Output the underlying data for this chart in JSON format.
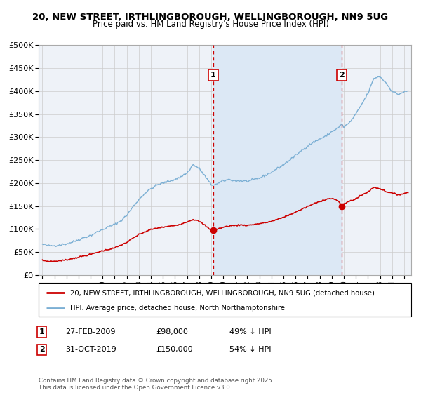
{
  "title_line1": "20, NEW STREET, IRTHLINGBOROUGH, WELLINGBOROUGH, NN9 5UG",
  "title_line2": "Price paid vs. HM Land Registry's House Price Index (HPI)",
  "background_color": "#ffffff",
  "plot_bg_color": "#eef2f8",
  "grid_color": "#cccccc",
  "hpi_color": "#7bafd4",
  "price_color": "#cc0000",
  "shade_color": "#dce8f5",
  "vline_color": "#cc0000",
  "marker1_date": 2009.15,
  "marker2_date": 2019.83,
  "marker1_price": 98000,
  "marker2_price": 150000,
  "legend_label_price": "20, NEW STREET, IRTHLINGBOROUGH, WELLINGBOROUGH, NN9 5UG (detached house)",
  "legend_label_hpi": "HPI: Average price, detached house, North Northamptonshire",
  "note1_label": "1",
  "note1_date": "27-FEB-2009",
  "note1_price": "£98,000",
  "note1_text": "49% ↓ HPI",
  "note2_label": "2",
  "note2_date": "31-OCT-2019",
  "note2_price": "£150,000",
  "note2_text": "54% ↓ HPI",
  "copyright_text": "Contains HM Land Registry data © Crown copyright and database right 2025.\nThis data is licensed under the Open Government Licence v3.0.",
  "ylim": [
    0,
    500000
  ],
  "yticks": [
    0,
    50000,
    100000,
    150000,
    200000,
    250000,
    300000,
    350000,
    400000,
    450000,
    500000
  ],
  "ytick_labels": [
    "£0",
    "£50K",
    "£100K",
    "£150K",
    "£200K",
    "£250K",
    "£300K",
    "£350K",
    "£400K",
    "£450K",
    "£500K"
  ],
  "xlim_start": 1994.7,
  "xlim_end": 2025.6,
  "hpi_keypoints": [
    [
      1995.0,
      67000
    ],
    [
      1995.5,
      64000
    ],
    [
      1996.0,
      64000
    ],
    [
      1996.5,
      66000
    ],
    [
      1997.0,
      68000
    ],
    [
      1997.5,
      72000
    ],
    [
      1998.0,
      77000
    ],
    [
      1998.5,
      82000
    ],
    [
      1999.0,
      86000
    ],
    [
      1999.5,
      93000
    ],
    [
      2000.0,
      99000
    ],
    [
      2000.5,
      105000
    ],
    [
      2001.0,
      110000
    ],
    [
      2001.5,
      118000
    ],
    [
      2002.0,
      130000
    ],
    [
      2002.5,
      148000
    ],
    [
      2003.0,
      164000
    ],
    [
      2003.5,
      178000
    ],
    [
      2004.0,
      188000
    ],
    [
      2004.5,
      196000
    ],
    [
      2005.0,
      200000
    ],
    [
      2005.5,
      204000
    ],
    [
      2006.0,
      208000
    ],
    [
      2006.5,
      214000
    ],
    [
      2007.0,
      222000
    ],
    [
      2007.5,
      240000
    ],
    [
      2008.0,
      232000
    ],
    [
      2008.5,
      215000
    ],
    [
      2009.0,
      196000
    ],
    [
      2009.5,
      198000
    ],
    [
      2010.0,
      205000
    ],
    [
      2010.5,
      208000
    ],
    [
      2011.0,
      205000
    ],
    [
      2011.5,
      205000
    ],
    [
      2012.0,
      204000
    ],
    [
      2012.5,
      207000
    ],
    [
      2013.0,
      211000
    ],
    [
      2013.5,
      217000
    ],
    [
      2014.0,
      224000
    ],
    [
      2014.5,
      232000
    ],
    [
      2015.0,
      240000
    ],
    [
      2015.5,
      250000
    ],
    [
      2016.0,
      260000
    ],
    [
      2016.5,
      271000
    ],
    [
      2017.0,
      281000
    ],
    [
      2017.5,
      289000
    ],
    [
      2018.0,
      296000
    ],
    [
      2018.5,
      302000
    ],
    [
      2019.0,
      312000
    ],
    [
      2019.5,
      320000
    ],
    [
      2019.83,
      328000
    ],
    [
      2020.0,
      322000
    ],
    [
      2020.5,
      332000
    ],
    [
      2021.0,
      350000
    ],
    [
      2021.5,
      372000
    ],
    [
      2022.0,
      395000
    ],
    [
      2022.5,
      428000
    ],
    [
      2023.0,
      432000
    ],
    [
      2023.5,
      418000
    ],
    [
      2024.0,
      400000
    ],
    [
      2024.5,
      393000
    ],
    [
      2025.0,
      398000
    ],
    [
      2025.3,
      400000
    ]
  ],
  "price_keypoints": [
    [
      1995.0,
      32000
    ],
    [
      1995.5,
      30000
    ],
    [
      1996.0,
      30000
    ],
    [
      1996.5,
      31500
    ],
    [
      1997.0,
      33000
    ],
    [
      1997.5,
      36000
    ],
    [
      1998.0,
      39000
    ],
    [
      1998.5,
      42000
    ],
    [
      1999.0,
      45000
    ],
    [
      1999.5,
      49000
    ],
    [
      2000.0,
      53000
    ],
    [
      2000.5,
      56000
    ],
    [
      2001.0,
      59000
    ],
    [
      2001.5,
      65000
    ],
    [
      2002.0,
      71000
    ],
    [
      2002.5,
      80000
    ],
    [
      2003.0,
      88000
    ],
    [
      2003.5,
      94000
    ],
    [
      2004.0,
      99000
    ],
    [
      2004.5,
      102000
    ],
    [
      2005.0,
      104000
    ],
    [
      2005.5,
      106000
    ],
    [
      2006.0,
      108000
    ],
    [
      2006.5,
      111000
    ],
    [
      2007.0,
      116000
    ],
    [
      2007.5,
      121000
    ],
    [
      2008.0,
      117000
    ],
    [
      2008.5,
      108000
    ],
    [
      2009.0,
      97000
    ],
    [
      2009.15,
      98000
    ],
    [
      2009.5,
      100000
    ],
    [
      2010.0,
      104000
    ],
    [
      2010.5,
      107000
    ],
    [
      2011.0,
      108000
    ],
    [
      2011.5,
      109000
    ],
    [
      2012.0,
      108000
    ],
    [
      2012.5,
      110000
    ],
    [
      2013.0,
      112000
    ],
    [
      2013.5,
      114000
    ],
    [
      2014.0,
      117000
    ],
    [
      2014.5,
      121000
    ],
    [
      2015.0,
      126000
    ],
    [
      2015.5,
      131000
    ],
    [
      2016.0,
      137000
    ],
    [
      2016.5,
      143000
    ],
    [
      2017.0,
      149000
    ],
    [
      2017.5,
      155000
    ],
    [
      2018.0,
      160000
    ],
    [
      2018.5,
      165000
    ],
    [
      2019.0,
      167000
    ],
    [
      2019.5,
      162000
    ],
    [
      2019.83,
      150000
    ],
    [
      2020.0,
      155000
    ],
    [
      2020.5,
      161000
    ],
    [
      2021.0,
      166000
    ],
    [
      2021.5,
      174000
    ],
    [
      2022.0,
      181000
    ],
    [
      2022.5,
      191000
    ],
    [
      2023.0,
      188000
    ],
    [
      2023.5,
      182000
    ],
    [
      2024.0,
      178000
    ],
    [
      2024.5,
      175000
    ],
    [
      2025.0,
      177000
    ],
    [
      2025.3,
      180000
    ]
  ]
}
